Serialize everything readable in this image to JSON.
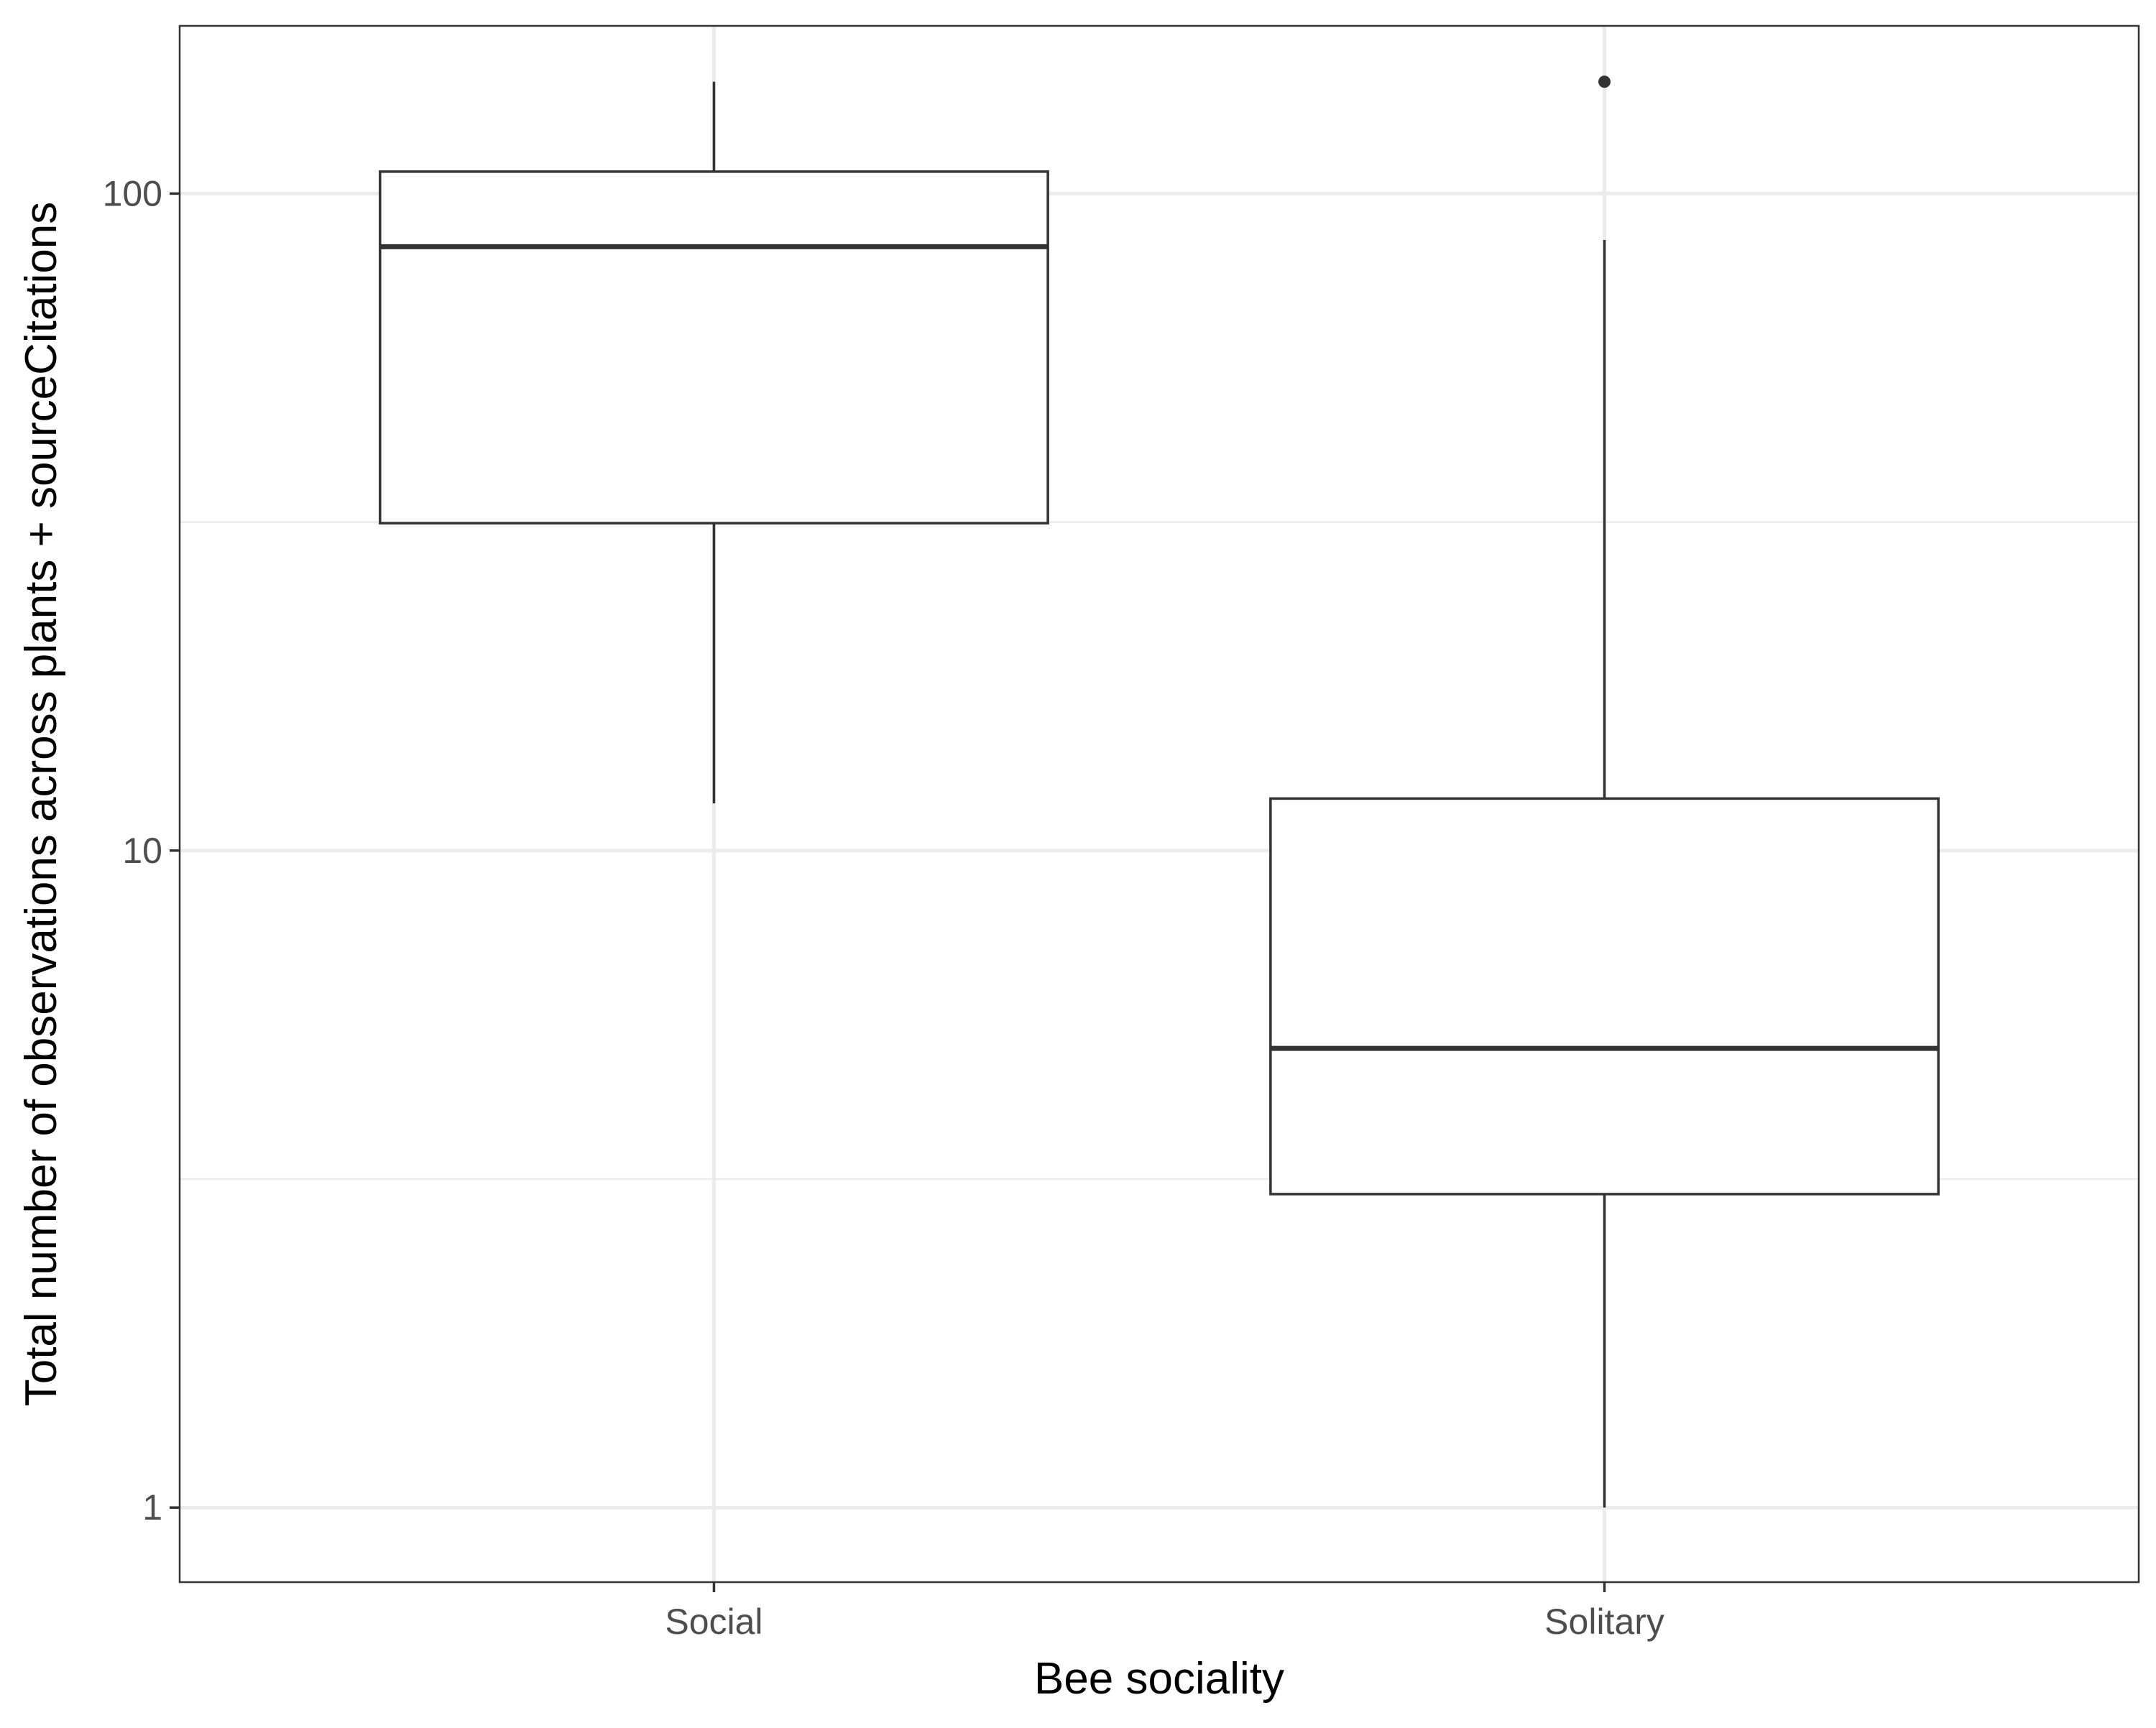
{
  "chart_data": {
    "type": "boxplot",
    "xlabel": "Bee sociality",
    "ylabel": "Total number of observations across plants + sourceCitations",
    "y_scale": "log10",
    "ylim": [
      0.77,
      180
    ],
    "y_ticks": [
      1,
      10,
      100
    ],
    "y_tick_labels": [
      "1",
      "10",
      "100"
    ],
    "grid": true,
    "categories": [
      "Social",
      "Solitary"
    ],
    "boxes": [
      {
        "category": "Social",
        "whisker_low": 11.8,
        "q1": 31.5,
        "median": 83,
        "q3": 108,
        "whisker_high": 148,
        "outliers": []
      },
      {
        "category": "Solitary",
        "whisker_low": 1,
        "q1": 3,
        "median": 5,
        "q3": 12,
        "whisker_high": 85,
        "outliers": [
          148
        ]
      }
    ],
    "colors": {
      "box_stroke": "#333333",
      "box_fill": "#ffffff",
      "grid_major": "#ebebeb",
      "grid_minor": "#ebebeb",
      "panel_border": "#333333",
      "tick_label": "#4d4d4d",
      "axis_title": "#000000"
    }
  }
}
